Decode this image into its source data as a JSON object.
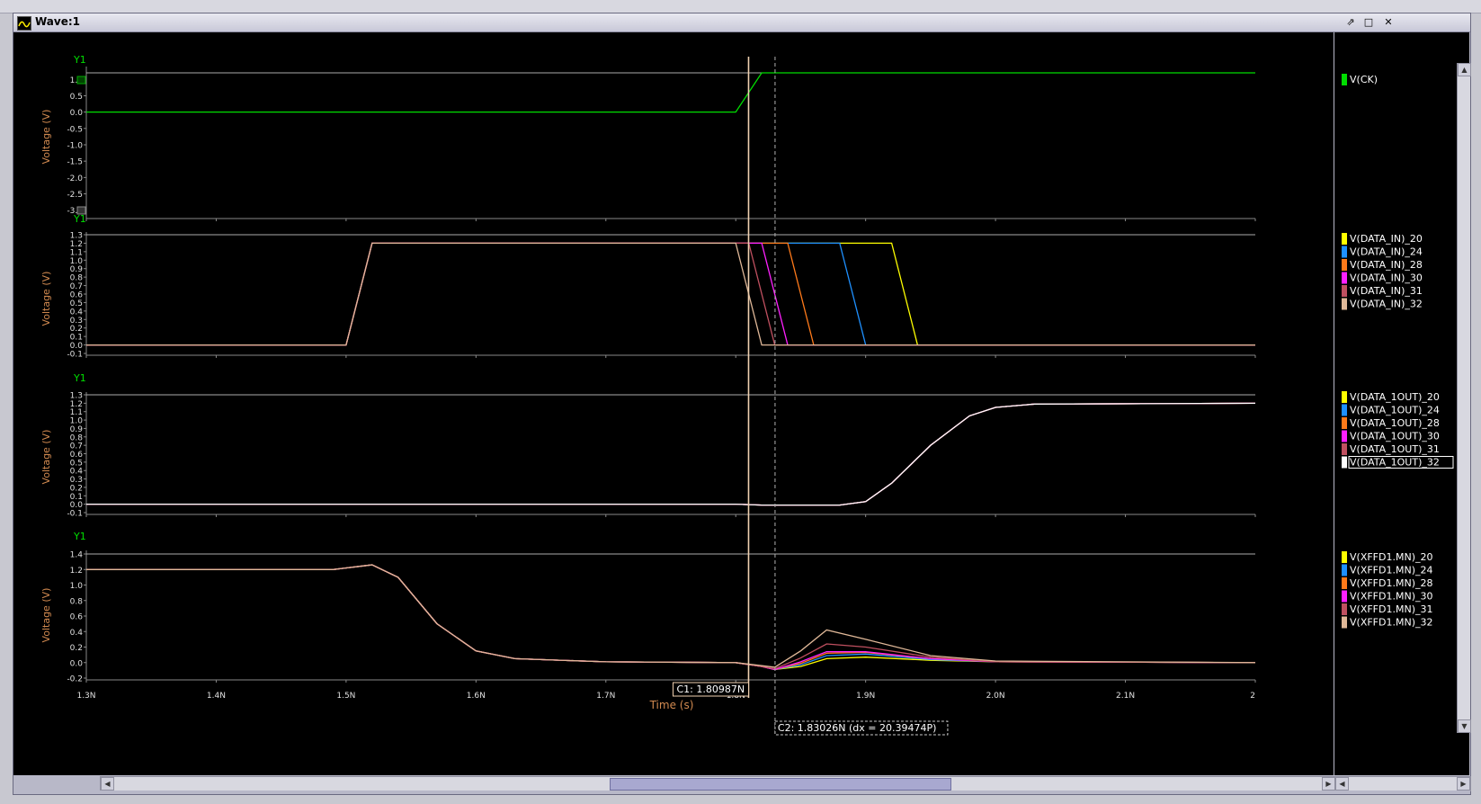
{
  "window": {
    "title": "Wave:1"
  },
  "colors": {
    "sig20": "#ffff00",
    "sig24": "#1e90ff",
    "sig28": "#ff7a1a",
    "sig30": "#ff20ff",
    "sig31": "#c05060",
    "sig32": "#e0b898",
    "ck": "#00dd00"
  },
  "cursors": {
    "c1_label": "C1: 1.80987N",
    "c2_label": "C2: 1.83026N (dx = 20.39474P)"
  },
  "chart_data": [
    {
      "type": "line",
      "ylabel": "Voltage (V)",
      "y_axis_name": "Y1",
      "ylim": [
        -3.2,
        1.2
      ],
      "yticks": [
        "1.0",
        "0.5",
        "0.0",
        "-0.5",
        "-1.0",
        "-1.5",
        "-2.0",
        "-2.5",
        "-3.0"
      ],
      "ytick_values": [
        1.0,
        0.5,
        0.0,
        -0.5,
        -1.0,
        -1.5,
        -2.0,
        -2.5,
        -3.0
      ],
      "series": [
        {
          "name": "V(CK)",
          "color": "#00dd00",
          "points": [
            [
              1.3,
              0.0
            ],
            [
              1.8,
              0.0
            ],
            [
              1.82,
              1.2
            ],
            [
              2.2,
              1.2
            ]
          ]
        }
      ]
    },
    {
      "type": "line",
      "ylabel": "Voltage (V)",
      "y_axis_name": "Y1",
      "ylim": [
        -0.1,
        1.3
      ],
      "yticks": [
        "1.3",
        "1.2",
        "1.1",
        "1.0",
        "0.9",
        "0.8",
        "0.7",
        "0.6",
        "0.5",
        "0.4",
        "0.3",
        "0.2",
        "0.1",
        "0.0",
        "-0.1"
      ],
      "ytick_values": [
        1.3,
        1.2,
        1.1,
        1.0,
        0.9,
        0.8,
        0.7,
        0.6,
        0.5,
        0.4,
        0.3,
        0.2,
        0.1,
        0.0,
        -0.1
      ],
      "series": [
        {
          "name": "V(DATA_IN)_20",
          "color": "#ffff00",
          "points": [
            [
              1.3,
              0.0
            ],
            [
              1.5,
              0.0
            ],
            [
              1.52,
              1.2
            ],
            [
              1.92,
              1.2
            ],
            [
              1.94,
              0.0
            ],
            [
              2.2,
              0.0
            ]
          ]
        },
        {
          "name": "V(DATA_IN)_24",
          "color": "#1e90ff",
          "points": [
            [
              1.3,
              0.0
            ],
            [
              1.5,
              0.0
            ],
            [
              1.52,
              1.2
            ],
            [
              1.88,
              1.2
            ],
            [
              1.9,
              0.0
            ],
            [
              2.2,
              0.0
            ]
          ]
        },
        {
          "name": "V(DATA_IN)_28",
          "color": "#ff7a1a",
          "points": [
            [
              1.3,
              0.0
            ],
            [
              1.5,
              0.0
            ],
            [
              1.52,
              1.2
            ],
            [
              1.84,
              1.2
            ],
            [
              1.86,
              0.0
            ],
            [
              2.2,
              0.0
            ]
          ]
        },
        {
          "name": "V(DATA_IN)_30",
          "color": "#ff20ff",
          "points": [
            [
              1.3,
              0.0
            ],
            [
              1.5,
              0.0
            ],
            [
              1.52,
              1.2
            ],
            [
              1.82,
              1.2
            ],
            [
              1.84,
              0.0
            ],
            [
              2.2,
              0.0
            ]
          ]
        },
        {
          "name": "V(DATA_IN)_31",
          "color": "#c05060",
          "points": [
            [
              1.3,
              0.0
            ],
            [
              1.5,
              0.0
            ],
            [
              1.52,
              1.2
            ],
            [
              1.81,
              1.2
            ],
            [
              1.83,
              0.0
            ],
            [
              2.2,
              0.0
            ]
          ]
        },
        {
          "name": "V(DATA_IN)_32",
          "color": "#e0b898",
          "points": [
            [
              1.3,
              0.0
            ],
            [
              1.5,
              0.0
            ],
            [
              1.52,
              1.2
            ],
            [
              1.8,
              1.2
            ],
            [
              1.82,
              0.0
            ],
            [
              2.2,
              0.0
            ]
          ]
        }
      ]
    },
    {
      "type": "line",
      "ylabel": "Voltage (V)",
      "y_axis_name": "Y1",
      "ylim": [
        -0.1,
        1.3
      ],
      "yticks": [
        "1.3",
        "1.2",
        "1.1",
        "1.0",
        "0.9",
        "0.8",
        "0.7",
        "0.6",
        "0.5",
        "0.4",
        "0.3",
        "0.2",
        "0.1",
        "0.0",
        "-0.1"
      ],
      "ytick_values": [
        1.3,
        1.2,
        1.1,
        1.0,
        0.9,
        0.8,
        0.7,
        0.6,
        0.5,
        0.4,
        0.3,
        0.2,
        0.1,
        0.0,
        -0.1
      ],
      "series": [
        {
          "name": "V(DATA_1OUT)_20",
          "color": "#ffff00",
          "points": [
            [
              1.3,
              0.0
            ],
            [
              1.8,
              0.0
            ],
            [
              1.82,
              -0.01
            ],
            [
              1.88,
              -0.01
            ],
            [
              1.9,
              0.03
            ],
            [
              1.92,
              0.25
            ],
            [
              1.95,
              0.7
            ],
            [
              1.98,
              1.05
            ],
            [
              2.0,
              1.15
            ],
            [
              2.03,
              1.19
            ],
            [
              2.2,
              1.2
            ]
          ]
        },
        {
          "name": "V(DATA_1OUT)_24",
          "color": "#1e90ff",
          "points": [
            [
              1.3,
              0.0
            ],
            [
              1.8,
              0.0
            ],
            [
              1.82,
              -0.01
            ],
            [
              1.88,
              -0.01
            ],
            [
              1.9,
              0.03
            ],
            [
              1.92,
              0.25
            ],
            [
              1.95,
              0.7
            ],
            [
              1.98,
              1.05
            ],
            [
              2.0,
              1.15
            ],
            [
              2.03,
              1.19
            ],
            [
              2.2,
              1.2
            ]
          ]
        },
        {
          "name": "V(DATA_1OUT)_28",
          "color": "#ff7a1a",
          "points": [
            [
              1.3,
              0.0
            ],
            [
              1.8,
              0.0
            ],
            [
              1.82,
              -0.01
            ],
            [
              1.88,
              -0.01
            ],
            [
              1.9,
              0.03
            ],
            [
              1.92,
              0.25
            ],
            [
              1.95,
              0.7
            ],
            [
              1.98,
              1.05
            ],
            [
              2.0,
              1.15
            ],
            [
              2.03,
              1.19
            ],
            [
              2.2,
              1.2
            ]
          ]
        },
        {
          "name": "V(DATA_1OUT)_30",
          "color": "#ff20ff",
          "points": [
            [
              1.3,
              0.0
            ],
            [
              1.8,
              0.0
            ],
            [
              1.82,
              -0.01
            ],
            [
              1.88,
              -0.01
            ],
            [
              1.9,
              0.03
            ],
            [
              1.92,
              0.25
            ],
            [
              1.95,
              0.7
            ],
            [
              1.98,
              1.05
            ],
            [
              2.0,
              1.15
            ],
            [
              2.03,
              1.19
            ],
            [
              2.2,
              1.2
            ]
          ]
        },
        {
          "name": "V(DATA_1OUT)_31",
          "color": "#c05060",
          "points": [
            [
              1.3,
              0.0
            ],
            [
              1.8,
              0.0
            ],
            [
              1.82,
              -0.01
            ],
            [
              1.88,
              -0.01
            ],
            [
              1.9,
              0.03
            ],
            [
              1.92,
              0.25
            ],
            [
              1.95,
              0.7
            ],
            [
              1.98,
              1.05
            ],
            [
              2.0,
              1.15
            ],
            [
              2.03,
              1.19
            ],
            [
              2.2,
              1.2
            ]
          ]
        },
        {
          "name": "V(DATA_1OUT)_32",
          "color": "#ffffff",
          "points": [
            [
              1.3,
              0.0
            ],
            [
              1.8,
              0.0
            ],
            [
              1.82,
              -0.01
            ],
            [
              1.88,
              -0.01
            ],
            [
              1.9,
              0.03
            ],
            [
              1.92,
              0.25
            ],
            [
              1.95,
              0.7
            ],
            [
              1.98,
              1.05
            ],
            [
              2.0,
              1.15
            ],
            [
              2.03,
              1.19
            ],
            [
              2.2,
              1.2
            ]
          ]
        }
      ]
    },
    {
      "type": "line",
      "ylabel": "Voltage (V)",
      "y_axis_name": "Y1",
      "ylim": [
        -0.2,
        1.4
      ],
      "yticks": [
        "1.4",
        "1.2",
        "1.0",
        "0.8",
        "0.6",
        "0.4",
        "0.2",
        "0.0",
        "-0.2"
      ],
      "ytick_values": [
        1.4,
        1.2,
        1.0,
        0.8,
        0.6,
        0.4,
        0.2,
        0.0,
        -0.2
      ],
      "xticks": [
        "1.3N",
        "1.4N",
        "1.5N",
        "1.6N",
        "1.7N",
        "1.8N",
        "1.9N",
        "2.0N",
        "2.1N",
        "2"
      ],
      "xtick_values": [
        1.3,
        1.4,
        1.5,
        1.6,
        1.7,
        1.8,
        1.9,
        2.0,
        2.1,
        2.2
      ],
      "xlabel": "Time (s)",
      "xlim": [
        1.3,
        2.2
      ],
      "series": [
        {
          "name": "V(XFFD1.MN)_20",
          "color": "#ffff00",
          "points": [
            [
              1.3,
              1.2
            ],
            [
              1.49,
              1.2
            ],
            [
              1.51,
              1.24
            ],
            [
              1.52,
              1.26
            ],
            [
              1.54,
              1.1
            ],
            [
              1.57,
              0.5
            ],
            [
              1.6,
              0.15
            ],
            [
              1.63,
              0.05
            ],
            [
              1.7,
              0.01
            ],
            [
              1.8,
              0.0
            ],
            [
              1.82,
              -0.05
            ],
            [
              1.83,
              -0.09
            ],
            [
              1.85,
              -0.05
            ],
            [
              1.87,
              0.05
            ],
            [
              1.9,
              0.07
            ],
            [
              1.95,
              0.03
            ],
            [
              2.0,
              0.01
            ],
            [
              2.2,
              0.0
            ]
          ]
        },
        {
          "name": "V(XFFD1.MN)_24",
          "color": "#1e90ff",
          "points": [
            [
              1.3,
              1.2
            ],
            [
              1.49,
              1.2
            ],
            [
              1.51,
              1.24
            ],
            [
              1.52,
              1.26
            ],
            [
              1.54,
              1.1
            ],
            [
              1.57,
              0.5
            ],
            [
              1.6,
              0.15
            ],
            [
              1.63,
              0.05
            ],
            [
              1.7,
              0.01
            ],
            [
              1.8,
              0.0
            ],
            [
              1.82,
              -0.05
            ],
            [
              1.83,
              -0.09
            ],
            [
              1.85,
              -0.03
            ],
            [
              1.87,
              0.09
            ],
            [
              1.9,
              0.11
            ],
            [
              1.95,
              0.04
            ],
            [
              2.0,
              0.01
            ],
            [
              2.2,
              0.0
            ]
          ]
        },
        {
          "name": "V(XFFD1.MN)_28",
          "color": "#ff7a1a",
          "points": [
            [
              1.3,
              1.2
            ],
            [
              1.49,
              1.2
            ],
            [
              1.51,
              1.24
            ],
            [
              1.52,
              1.26
            ],
            [
              1.54,
              1.1
            ],
            [
              1.57,
              0.5
            ],
            [
              1.6,
              0.15
            ],
            [
              1.63,
              0.05
            ],
            [
              1.7,
              0.01
            ],
            [
              1.8,
              0.0
            ],
            [
              1.82,
              -0.05
            ],
            [
              1.83,
              -0.09
            ],
            [
              1.85,
              -0.01
            ],
            [
              1.87,
              0.12
            ],
            [
              1.9,
              0.13
            ],
            [
              1.95,
              0.05
            ],
            [
              2.0,
              0.01
            ],
            [
              2.2,
              0.0
            ]
          ]
        },
        {
          "name": "V(XFFD1.MN)_30",
          "color": "#ff20ff",
          "points": [
            [
              1.3,
              1.2
            ],
            [
              1.49,
              1.2
            ],
            [
              1.51,
              1.24
            ],
            [
              1.52,
              1.26
            ],
            [
              1.54,
              1.1
            ],
            [
              1.57,
              0.5
            ],
            [
              1.6,
              0.15
            ],
            [
              1.63,
              0.05
            ],
            [
              1.7,
              0.01
            ],
            [
              1.8,
              0.0
            ],
            [
              1.82,
              -0.05
            ],
            [
              1.83,
              -0.09
            ],
            [
              1.85,
              0.01
            ],
            [
              1.87,
              0.14
            ],
            [
              1.9,
              0.14
            ],
            [
              1.95,
              0.05
            ],
            [
              2.0,
              0.01
            ],
            [
              2.2,
              0.0
            ]
          ]
        },
        {
          "name": "V(XFFD1.MN)_31",
          "color": "#c05060",
          "points": [
            [
              1.3,
              1.2
            ],
            [
              1.49,
              1.2
            ],
            [
              1.51,
              1.24
            ],
            [
              1.52,
              1.26
            ],
            [
              1.54,
              1.1
            ],
            [
              1.57,
              0.5
            ],
            [
              1.6,
              0.15
            ],
            [
              1.63,
              0.05
            ],
            [
              1.7,
              0.01
            ],
            [
              1.8,
              0.0
            ],
            [
              1.82,
              -0.05
            ],
            [
              1.83,
              -0.08
            ],
            [
              1.85,
              0.06
            ],
            [
              1.87,
              0.24
            ],
            [
              1.9,
              0.2
            ],
            [
              1.95,
              0.07
            ],
            [
              2.0,
              0.01
            ],
            [
              2.2,
              0.0
            ]
          ]
        },
        {
          "name": "V(XFFD1.MN)_32",
          "color": "#e0b898",
          "points": [
            [
              1.3,
              1.2
            ],
            [
              1.49,
              1.2
            ],
            [
              1.51,
              1.24
            ],
            [
              1.52,
              1.26
            ],
            [
              1.54,
              1.1
            ],
            [
              1.57,
              0.5
            ],
            [
              1.6,
              0.15
            ],
            [
              1.63,
              0.05
            ],
            [
              1.7,
              0.01
            ],
            [
              1.8,
              0.0
            ],
            [
              1.82,
              -0.04
            ],
            [
              1.83,
              -0.06
            ],
            [
              1.85,
              0.15
            ],
            [
              1.87,
              0.42
            ],
            [
              1.9,
              0.3
            ],
            [
              1.95,
              0.09
            ],
            [
              2.0,
              0.02
            ],
            [
              2.2,
              0.0
            ]
          ]
        }
      ]
    }
  ]
}
